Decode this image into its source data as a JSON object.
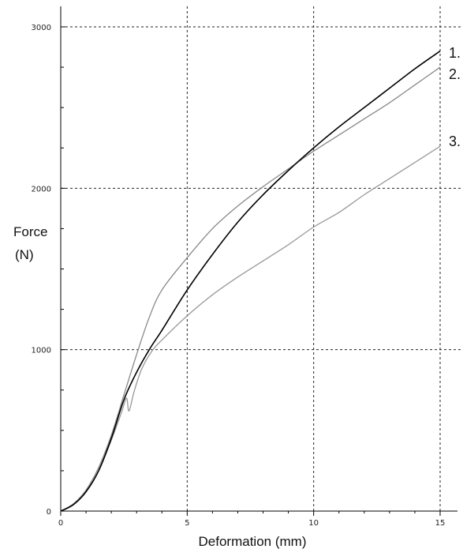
{
  "chart_data": {
    "type": "line",
    "title": "",
    "xlabel": "Deformation (mm)",
    "ylabel_line1": "Force",
    "ylabel_line2": "(N)",
    "xlim": [
      0,
      15
    ],
    "ylim": [
      0,
      3000
    ],
    "x_ticks": [
      0,
      5,
      10,
      15
    ],
    "y_ticks": [
      0,
      1000,
      2000,
      3000
    ],
    "x_tick_labels": [
      "0",
      "5",
      "10",
      "15"
    ],
    "y_tick_labels": [
      "0",
      "1000",
      "2000",
      "3000"
    ],
    "grid": true,
    "series": [
      {
        "name": "1.",
        "color": "#000000",
        "x": [
          0,
          0.5,
          1.0,
          1.5,
          2.0,
          2.5,
          3.0,
          3.5,
          4.0,
          5.0,
          6.0,
          7.0,
          8.0,
          9.0,
          10.0,
          11.0,
          12.0,
          13.0,
          14.0,
          15.0
        ],
        "y": [
          0,
          40,
          120,
          250,
          450,
          690,
          860,
          1000,
          1120,
          1370,
          1590,
          1790,
          1960,
          2110,
          2250,
          2380,
          2500,
          2620,
          2740,
          2850
        ]
      },
      {
        "name": "2.",
        "color": "#888888",
        "x": [
          0,
          0.5,
          1.0,
          1.5,
          2.0,
          2.5,
          3.0,
          3.5,
          4.0,
          5.0,
          6.0,
          7.0,
          8.0,
          9.0,
          10.0,
          11.0,
          12.0,
          13.0,
          14.0,
          15.0
        ],
        "y": [
          0,
          45,
          130,
          270,
          470,
          720,
          970,
          1200,
          1370,
          1570,
          1750,
          1890,
          2010,
          2120,
          2230,
          2330,
          2430,
          2530,
          2640,
          2750
        ]
      },
      {
        "name": "3.",
        "color": "#999999",
        "x": [
          0,
          0.5,
          1.0,
          1.5,
          2.0,
          2.4,
          2.6,
          2.7,
          2.9,
          3.2,
          3.6,
          4.0,
          5.0,
          6.0,
          7.0,
          8.0,
          9.0,
          10.0,
          11.0,
          12.0,
          13.0,
          14.0,
          15.0
        ],
        "y": [
          0,
          40,
          120,
          250,
          440,
          610,
          700,
          620,
          740,
          880,
          990,
          1060,
          1210,
          1340,
          1450,
          1550,
          1650,
          1760,
          1850,
          1960,
          2060,
          2160,
          2260
        ]
      }
    ]
  }
}
